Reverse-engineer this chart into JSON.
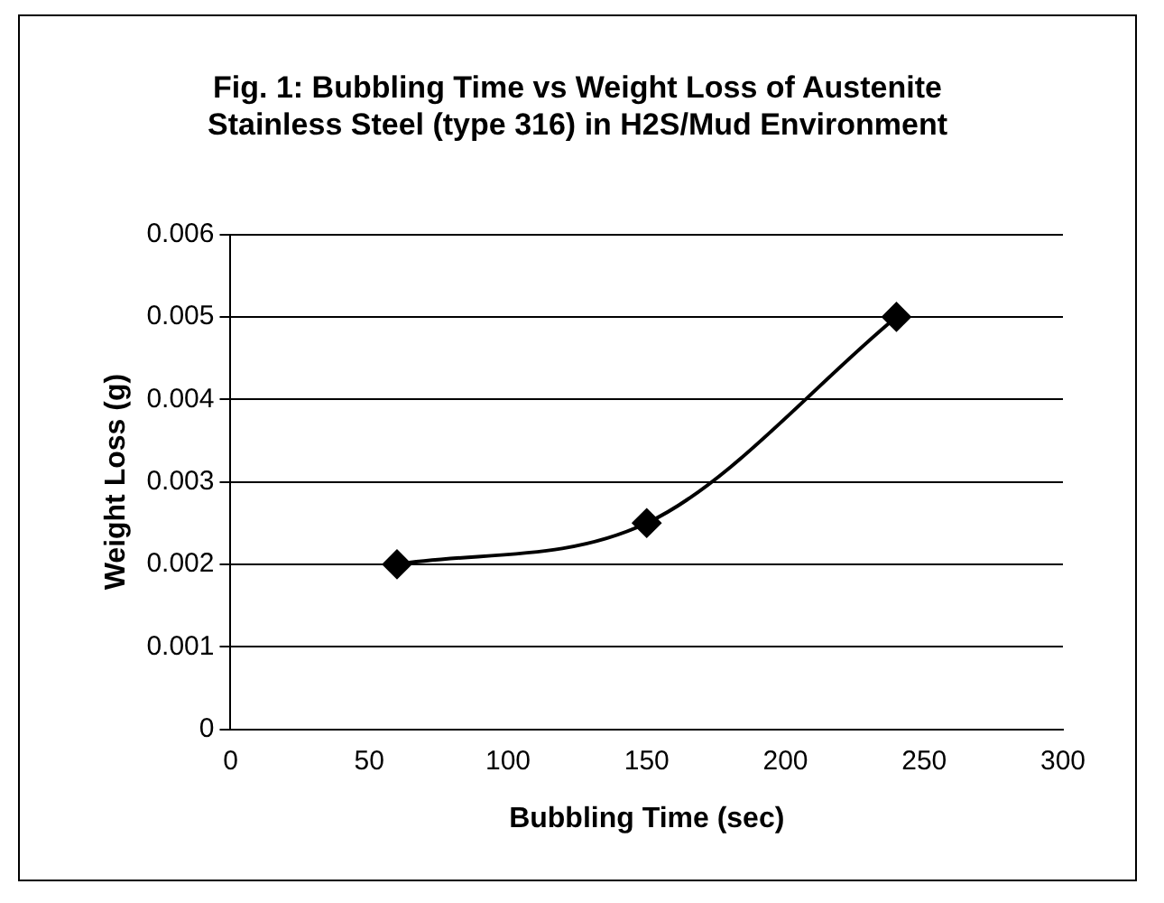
{
  "chart_data": {
    "type": "line",
    "title": "Fig. 1: Bubbling Time vs Weight Loss of Austenite Stainless Steel (type 316) in H2S/Mud Environment",
    "xlabel": "Bubbling Time (sec)",
    "ylabel": "Weight Loss (g)",
    "x": [
      60,
      150,
      240
    ],
    "series": [
      {
        "color": "#000000",
        "values": [
          0.002,
          0.0025,
          0.005
        ]
      }
    ],
    "xlim": [
      0,
      300
    ],
    "xticks": [
      0,
      50,
      100,
      150,
      200,
      250,
      300
    ],
    "ylim": [
      0,
      0.006
    ],
    "yticks": [
      0,
      0.001,
      0.002,
      0.003,
      0.004,
      0.005,
      0.006
    ],
    "grid": "y",
    "legend": false,
    "marker": "diamond",
    "line_style": "solid"
  }
}
